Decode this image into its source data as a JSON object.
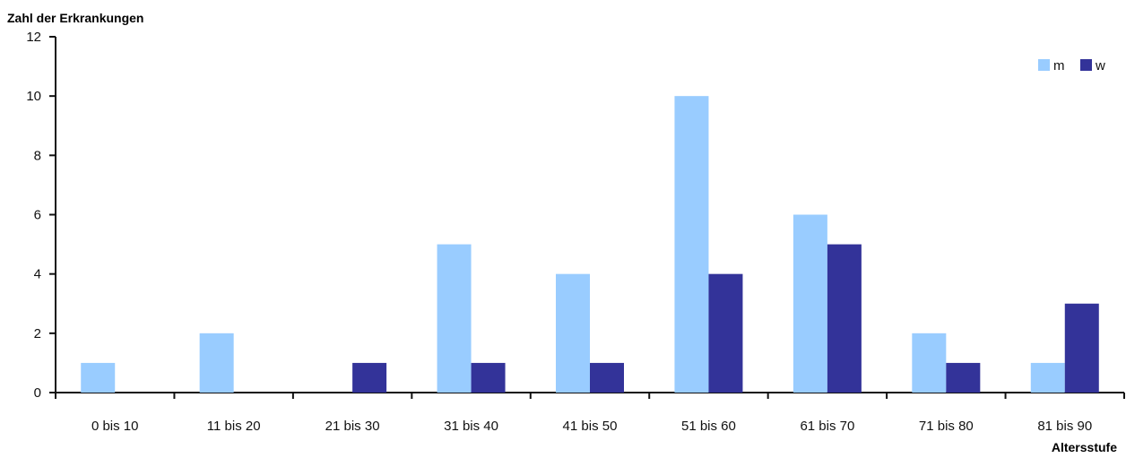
{
  "chart_data": {
    "type": "bar",
    "ylabel": "Zahl der Erkrankungen",
    "xlabel": "Altersstufe",
    "ylim": [
      0,
      12
    ],
    "yticks": [
      0,
      2,
      4,
      6,
      8,
      10,
      12
    ],
    "grid": false,
    "legend_position": "top-right",
    "categories": [
      "0 bis 10",
      "11 bis 20",
      "21 bis 30",
      "31 bis 40",
      "41 bis 50",
      "51 bis 60",
      "61 bis 70",
      "71 bis 80",
      "81 bis 90"
    ],
    "series": [
      {
        "name": "m",
        "color": "#99ccff",
        "values": [
          1,
          2,
          0,
          5,
          4,
          10,
          6,
          2,
          1
        ]
      },
      {
        "name": "w",
        "color": "#333399",
        "values": [
          0,
          0,
          1,
          1,
          1,
          4,
          5,
          1,
          3
        ]
      }
    ]
  }
}
